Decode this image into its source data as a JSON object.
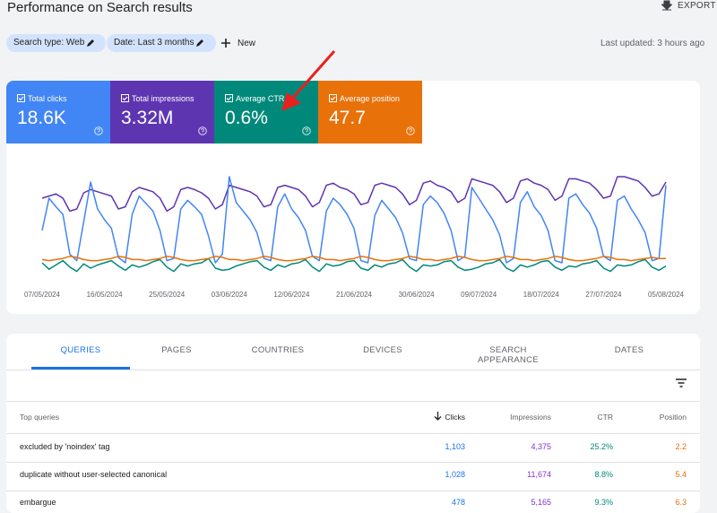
{
  "header": {
    "title": "Performance on Search results",
    "export": "EXPORT"
  },
  "filters": {
    "chips": [
      "Search type: Web",
      "Date: Last 3 months"
    ],
    "new": "New",
    "last_updated": "Last updated: 3 hours ago"
  },
  "cards": [
    {
      "label": "Total clicks",
      "value": "18.6K",
      "color": "#4285f4"
    },
    {
      "label": "Total impressions",
      "value": "3.32M",
      "color": "#5e35b1"
    },
    {
      "label": "Average CTR",
      "value": "0.6%",
      "color": "#00897b"
    },
    {
      "label": "Average position",
      "value": "47.7",
      "color": "#e8710a"
    }
  ],
  "chart_data": {
    "type": "line",
    "ylim": [
      0,
      100
    ],
    "x": [
      "07/05/2024",
      null,
      null,
      null,
      null,
      null,
      null,
      null,
      null,
      "16/05/2024",
      null,
      null,
      null,
      null,
      null,
      null,
      null,
      null,
      "25/05/2024",
      null,
      null,
      null,
      null,
      null,
      null,
      null,
      null,
      "03/06/2024",
      null,
      null,
      null,
      null,
      null,
      null,
      null,
      null,
      "12/06/2024",
      null,
      null,
      null,
      null,
      null,
      null,
      null,
      null,
      "21/06/2024",
      null,
      null,
      null,
      null,
      null,
      null,
      null,
      null,
      "30/06/2024",
      null,
      null,
      null,
      null,
      null,
      null,
      null,
      null,
      "09/07/2024",
      null,
      null,
      null,
      null,
      null,
      null,
      null,
      null,
      "18/07/2024",
      null,
      null,
      null,
      null,
      null,
      null,
      null,
      null,
      "27/07/2024",
      null,
      null,
      null,
      null,
      null,
      null,
      null,
      null,
      "05/08/2024"
    ],
    "series": [
      {
        "name": "Total impressions",
        "color": "#5e35b1",
        "values": [
          70,
          72,
          74,
          70,
          58,
          60,
          75,
          78,
          76,
          74,
          72,
          60,
          62,
          76,
          80,
          78,
          76,
          70,
          58,
          62,
          78,
          80,
          78,
          75,
          70,
          60,
          64,
          82,
          80,
          78,
          76,
          72,
          62,
          64,
          80,
          82,
          80,
          78,
          72,
          62,
          66,
          82,
          84,
          80,
          78,
          74,
          64,
          66,
          82,
          84,
          82,
          80,
          74,
          64,
          68,
          84,
          86,
          82,
          80,
          76,
          66,
          70,
          88,
          86,
          84,
          82,
          76,
          66,
          70,
          86,
          88,
          84,
          82,
          78,
          68,
          72,
          88,
          88,
          86,
          84,
          78,
          70,
          72,
          90,
          90,
          88,
          86,
          80,
          72,
          74,
          85
        ]
      },
      {
        "name": "Total clicks",
        "color": "#4285f4",
        "values": [
          40,
          70,
          62,
          55,
          18,
          12,
          48,
          85,
          60,
          50,
          42,
          15,
          10,
          55,
          72,
          65,
          58,
          40,
          12,
          14,
          60,
          68,
          62,
          55,
          35,
          10,
          18,
          90,
          66,
          58,
          50,
          38,
          14,
          12,
          62,
          74,
          60,
          52,
          40,
          16,
          12,
          58,
          70,
          64,
          55,
          42,
          12,
          10,
          54,
          68,
          60,
          52,
          38,
          14,
          12,
          64,
          72,
          66,
          56,
          40,
          12,
          16,
          80,
          70,
          60,
          50,
          36,
          10,
          14,
          66,
          76,
          62,
          54,
          40,
          12,
          10,
          70,
          74,
          64,
          56,
          42,
          16,
          12,
          68,
          72,
          60,
          50,
          38,
          12,
          14,
          82
        ]
      },
      {
        "name": "Average CTR",
        "color": "#00897b",
        "values": [
          10,
          4,
          8,
          12,
          6,
          2,
          9,
          5,
          8,
          10,
          12,
          7,
          3,
          8,
          6,
          8,
          11,
          13,
          6,
          2,
          9,
          7,
          9,
          10,
          14,
          5,
          3,
          4,
          7,
          9,
          11,
          12,
          6,
          3,
          8,
          6,
          9,
          10,
          13,
          6,
          2,
          9,
          7,
          8,
          11,
          12,
          5,
          3,
          8,
          6,
          9,
          10,
          13,
          6,
          2,
          8,
          7,
          8,
          11,
          12,
          6,
          3,
          4,
          6,
          9,
          10,
          13,
          5,
          2,
          8,
          6,
          8,
          11,
          12,
          6,
          3,
          7,
          6,
          9,
          10,
          12,
          5,
          2,
          8,
          7,
          8,
          11,
          13,
          6,
          3,
          7
        ]
      },
      {
        "name": "Average position",
        "color": "#e8710a",
        "values": [
          13,
          12,
          13,
          14,
          16,
          15,
          13,
          12,
          12,
          13,
          14,
          16,
          15,
          13,
          13,
          12,
          13,
          14,
          16,
          15,
          13,
          12,
          12,
          13,
          14,
          16,
          15,
          13,
          13,
          12,
          13,
          14,
          16,
          15,
          13,
          12,
          12,
          13,
          14,
          16,
          15,
          13,
          13,
          12,
          13,
          14,
          16,
          15,
          13,
          12,
          12,
          13,
          14,
          16,
          15,
          13,
          13,
          12,
          13,
          14,
          16,
          15,
          13,
          12,
          12,
          13,
          14,
          16,
          15,
          13,
          13,
          12,
          13,
          14,
          16,
          15,
          13,
          12,
          12,
          13,
          14,
          16,
          15,
          13,
          13,
          12,
          13,
          14,
          15,
          14,
          14
        ]
      }
    ]
  },
  "tabs": [
    "QUERIES",
    "PAGES",
    "COUNTRIES",
    "DEVICES",
    "SEARCH APPEARANCE",
    "DATES"
  ],
  "table": {
    "columns": [
      "Top queries",
      "Clicks",
      "Impressions",
      "CTR",
      "Position"
    ],
    "rows": [
      [
        "excluded by 'noindex' tag",
        "1,103",
        "4,375",
        "25.2%",
        "2.2"
      ],
      [
        "duplicate without user-selected canonical",
        "1,028",
        "11,674",
        "8.8%",
        "5.4"
      ],
      [
        "embargue",
        "478",
        "5,165",
        "9.3%",
        "6.3"
      ]
    ]
  }
}
